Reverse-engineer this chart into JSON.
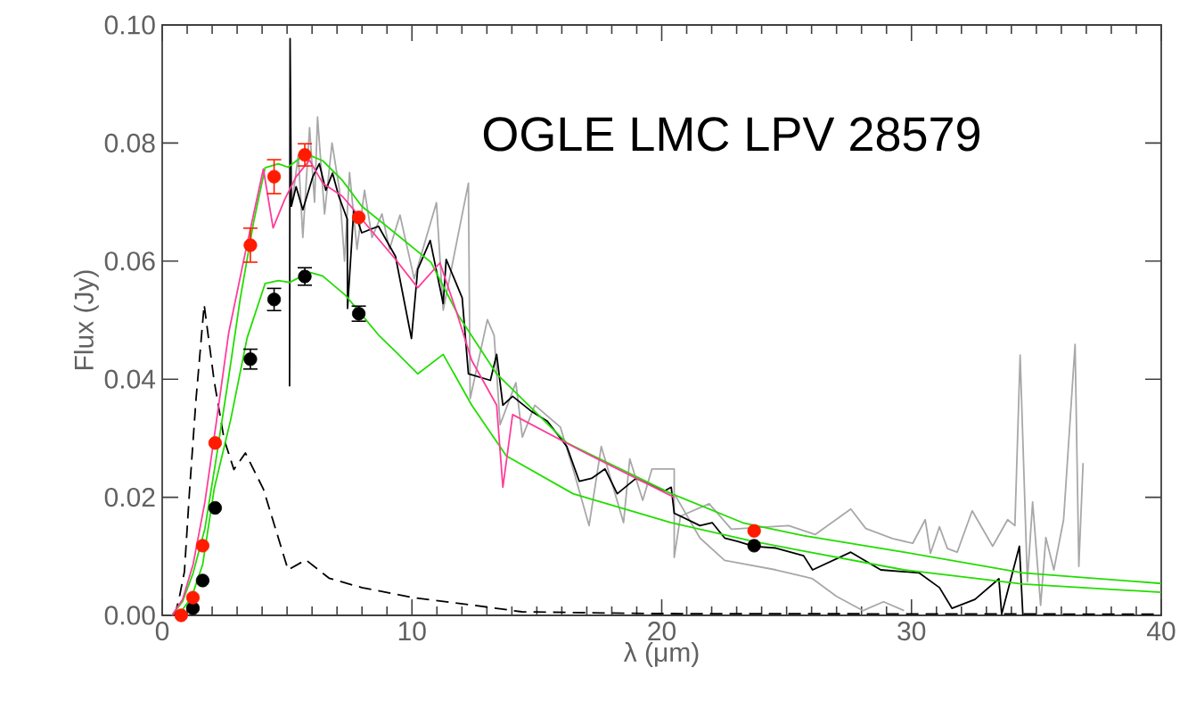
{
  "chart_data": {
    "type": "line",
    "xlabel": "λ (μm)",
    "ylabel": "Flux (Jy)",
    "annotations": [
      "OGLE LMC LPV 28579"
    ],
    "xlim": [
      0,
      40
    ],
    "ylim": [
      0,
      0.1
    ],
    "xticks": [
      0,
      10,
      20,
      30,
      40
    ],
    "yticks": [
      {
        "value": 0,
        "label": "0.00"
      },
      {
        "value": 0.02,
        "label": "0.02"
      },
      {
        "value": 0.04,
        "label": "0.04"
      },
      {
        "value": 0.06,
        "label": "0.06"
      },
      {
        "value": 0.08,
        "label": "0.08"
      },
      {
        "value": 0.1,
        "label": "0.10"
      }
    ],
    "series": [
      {
        "color": "#a8a8a8",
        "line_style": "solid",
        "marker": "none",
        "x": [
          5.2,
          5.45,
          5.63,
          5.9,
          6.1,
          6.22,
          6.5,
          6.8,
          7.1,
          7.3,
          7.5,
          7.8,
          8.1,
          8.4,
          8.8,
          9.1,
          9.52,
          10.09,
          10.98,
          11.25,
          12.26,
          12.33,
          13.02,
          13.29,
          13.53,
          14.16,
          14.42,
          14.92,
          15.94,
          16.45,
          17.09,
          17.58,
          18.47,
          18.72,
          19.24,
          19.61,
          20.5,
          20.5,
          20.75,
          21.9,
          22.79,
          25.08,
          26.15,
          27.57,
          28.17,
          29.24,
          30.05,
          30.55,
          30.76,
          31.12,
          31.44,
          31.83,
          32.43,
          33.25,
          33.85,
          34.14,
          34.35,
          34.64,
          34.85,
          35.17,
          35.38,
          35.7,
          36.09,
          36.55,
          36.7,
          36.87
        ],
        "values": [
          0.07,
          0.078,
          0.064,
          0.0826,
          0.07,
          0.0844,
          0.068,
          0.08,
          0.072,
          0.06,
          0.075,
          0.062,
          0.072,
          0.064,
          0.068,
          0.062,
          0.0678,
          0.057,
          0.0699,
          0.0517,
          0.0732,
          0.0367,
          0.0501,
          0.0474,
          0.0323,
          0.0394,
          0.0302,
          0.0356,
          0.0319,
          0.0248,
          0.0152,
          0.0286,
          0.0157,
          0.0265,
          0.0195,
          0.0248,
          0.0248,
          0.0098,
          0.0168,
          0.0189,
          0.0146,
          0.0152,
          0.0137,
          0.018,
          0.0147,
          0.013,
          0.0122,
          0.0162,
          0.0105,
          0.015,
          0.0113,
          0.0107,
          0.0177,
          0.0117,
          0.0162,
          0.0152,
          0.0441,
          0.0057,
          0.0192,
          0.0017,
          0.0132,
          0.0077,
          0.0162,
          0.0459,
          0.0083,
          0.0258
        ]
      },
      {
        "color": "#a8a8a8",
        "line_style": "solid",
        "marker": "none",
        "x": [
          20.5,
          21.53,
          22.52,
          23.3,
          24.57,
          25.68,
          26.04,
          27.0,
          28.06,
          28.88,
          29.7
        ],
        "values": [
          0.0206,
          0.0131,
          0.0093,
          0.0087,
          0.0077,
          0.0066,
          0.0062,
          0.0032,
          0.0008,
          0.0023,
          0.0008
        ]
      },
      {
        "color": "#000000",
        "line_style": "solid",
        "marker": "none",
        "x": [
          5.1,
          5.12,
          5.17,
          5.36,
          5.63,
          6.03,
          6.29,
          6.55,
          6.82,
          7.07,
          7.41,
          7.42,
          7.67,
          7.99,
          8.66,
          9.34,
          9.98,
          10.23,
          10.73,
          11.25,
          11.37,
          12.01,
          12.26,
          13.14,
          13.39,
          13.64,
          14.03,
          14.8,
          15.42,
          16.2,
          16.7,
          17.19,
          17.73,
          18.22,
          18.97,
          20.13,
          20.38,
          20.5,
          21.53,
          22.02,
          22.52,
          23.05,
          23.68,
          24.57,
          25.68,
          26.04,
          27.57,
          28.77,
          30.3,
          31.12,
          31.62,
          32.54,
          33.5,
          33.61,
          34.32,
          34.46
        ],
        "values": [
          0.0388,
          0.0977,
          0.0693,
          0.0726,
          0.0687,
          0.0743,
          0.0765,
          0.072,
          0.0749,
          0.071,
          0.0671,
          0.052,
          0.0687,
          0.0648,
          0.0659,
          0.0608,
          0.0469,
          0.0586,
          0.0635,
          0.0528,
          0.0603,
          0.0538,
          0.0409,
          0.0398,
          0.0442,
          0.0356,
          0.0371,
          0.0345,
          0.0329,
          0.0286,
          0.0227,
          0.0232,
          0.0248,
          0.0206,
          0.0232,
          0.0211,
          0.0217,
          0.0173,
          0.0152,
          0.0157,
          0.0131,
          0.0125,
          0.0117,
          0.0114,
          0.0101,
          0.0077,
          0.0107,
          0.0077,
          0.0072,
          0.0047,
          0.0012,
          0.0027,
          0.0062,
          0.0002,
          0.0117,
          0
        ]
      },
      {
        "color": "#000000",
        "line_style": "dashed",
        "marker": "none",
        "x": [
          0.5,
          0.67,
          0.89,
          1.09,
          1.35,
          1.68,
          2.08,
          2.48,
          2.87,
          3.33,
          4.05,
          5.04,
          5.75,
          6.68,
          7.99,
          10.05,
          12.5,
          14.4,
          19.5,
          40
        ],
        "values": [
          0,
          0.0027,
          0.0074,
          0.0208,
          0.0364,
          0.0526,
          0.0397,
          0.0298,
          0.0247,
          0.0275,
          0.0214,
          0.0077,
          0.0094,
          0.0063,
          0.0047,
          0.003,
          0.0017,
          0.0006,
          0.0003,
          0.0002
        ]
      },
      {
        "color": "#22dd00",
        "line_style": "solid",
        "marker": "none",
        "x": [
          0.39,
          0.82,
          1.24,
          1.71,
          2.17,
          2.66,
          3.13,
          3.66,
          4.12,
          4.65,
          5.04,
          5.75,
          6.43,
          7.21,
          7.99,
          9.31,
          10.76,
          11.87,
          13.39,
          16.2,
          20.39,
          23.3,
          25.68,
          29.7,
          34.46,
          40
        ],
        "values": [
          0,
          0.0024,
          0.0072,
          0.0147,
          0.0268,
          0.0403,
          0.0538,
          0.0666,
          0.0758,
          0.0765,
          0.0759,
          0.0782,
          0.077,
          0.0737,
          0.0693,
          0.0648,
          0.0598,
          0.0507,
          0.0409,
          0.0292,
          0.0206,
          0.0156,
          0.0135,
          0.0107,
          0.0072,
          0.0054
        ]
      },
      {
        "color": "#22dd00",
        "line_style": "solid",
        "marker": "none",
        "x": [
          0.64,
          1.17,
          1.62,
          2.08,
          2.74,
          3.4,
          4.12,
          4.65,
          5.1,
          5.9,
          6.42,
          7.34,
          8.66,
          9.34,
          10.23,
          11.25,
          12.39,
          13.78,
          16.45,
          20.38,
          23.68,
          25.68,
          29.7,
          34.46,
          40
        ],
        "values": [
          0,
          0.003,
          0.0086,
          0.0214,
          0.0331,
          0.047,
          0.0562,
          0.0567,
          0.0564,
          0.0581,
          0.0575,
          0.0542,
          0.0475,
          0.0447,
          0.0409,
          0.0442,
          0.0356,
          0.027,
          0.0206,
          0.0157,
          0.0125,
          0.0109,
          0.0077,
          0.0053,
          0.0039
        ]
      },
      {
        "color": "#ff3d9a",
        "line_style": "solid",
        "marker": "none",
        "x": [
          0.39,
          0.82,
          1.24,
          1.71,
          2.17,
          2.66,
          3.33,
          4.05,
          4.44,
          4.9,
          5.36,
          5.9,
          6.43,
          7.21,
          7.99,
          9.34,
          10.23,
          11.12,
          11.76,
          12.39,
          13.39,
          13.64,
          14.03,
          16.95,
          20.5
        ],
        "values": [
          0,
          0.0027,
          0.0087,
          0.0192,
          0.0328,
          0.0478,
          0.0615,
          0.0756,
          0.0656,
          0.0704,
          0.0743,
          0.0771,
          0.0732,
          0.071,
          0.0671,
          0.0603,
          0.0555,
          0.0597,
          0.0517,
          0.0432,
          0.0356,
          0.0217,
          0.034,
          0.0275,
          0.02
        ]
      },
      {
        "type": "scatter",
        "color": "#000000",
        "marker": "circle",
        "x": [
          1.23,
          1.62,
          2.12,
          3.53,
          4.48,
          5.71,
          7.87,
          23.7
        ],
        "values": [
          0.0012,
          0.0059,
          0.0182,
          0.0434,
          0.0535,
          0.0574,
          0.0511,
          0.0118
        ],
        "errors": [
          null,
          null,
          null,
          0.0018,
          0.002,
          0.0016,
          0.0014,
          null
        ]
      },
      {
        "type": "scatter",
        "color": "#ff1a00",
        "marker": "circle",
        "x": [
          0.76,
          1.23,
          1.62,
          2.12,
          3.53,
          4.48,
          5.71,
          7.87,
          23.7
        ],
        "values": [
          0,
          0.003,
          0.0118,
          0.0292,
          0.0627,
          0.0743,
          0.078,
          0.0674,
          0.0143
        ],
        "errors": [
          null,
          null,
          null,
          null,
          0.003,
          0.003,
          0.002,
          null,
          null
        ]
      }
    ]
  }
}
